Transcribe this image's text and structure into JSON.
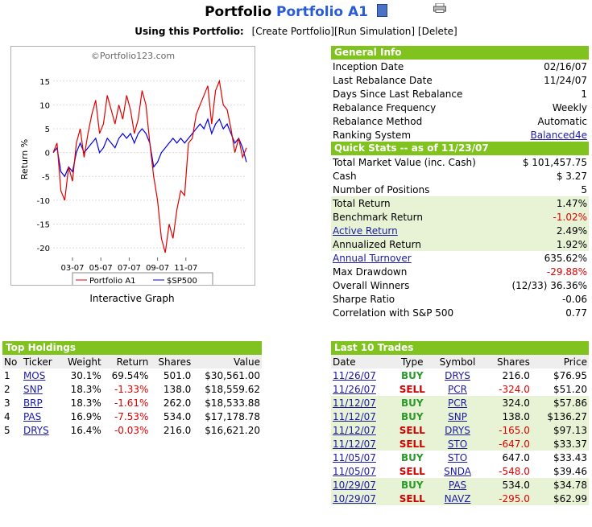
{
  "header": {
    "title_prefix": "Portfolio",
    "portfolio_name": "Portfolio A1",
    "using_label": "Using this Portfolio:",
    "actions": [
      "[Create Portfolio]",
      "[Run Simulation]",
      "[Delete]"
    ]
  },
  "graph": {
    "watermark": "©Portfolio123.com",
    "caption": "Interactive Graph",
    "legend": [
      "Portfolio A1",
      "$SP500"
    ],
    "ylabel": "Return %",
    "y_ticks": [
      "15",
      "10",
      "5",
      "0",
      "-5",
      "-10",
      "-15",
      "-20"
    ],
    "x_ticks": [
      "03-07",
      "05-07",
      "07-07",
      "09-07",
      "11-07"
    ]
  },
  "chart_data": {
    "type": "line",
    "title": "",
    "xlabel": "",
    "ylabel": "Return %",
    "ylim": [
      -22,
      18
    ],
    "x": [
      0,
      0.3,
      0.6,
      0.9,
      1.2,
      1.5,
      1.8,
      2.1,
      2.4,
      2.7,
      3.0,
      3.3,
      3.6,
      3.9,
      4.2,
      4.5,
      4.8,
      5.1,
      5.4,
      5.7,
      6.0,
      6.3,
      6.6,
      6.9,
      7.2,
      7.5,
      7.8,
      8.1,
      8.4,
      8.7,
      9.0,
      9.3,
      9.6,
      9.9,
      10.2,
      10.5,
      10.8,
      11.1,
      11.4,
      11.7,
      12.0,
      12.3,
      12.6,
      12.9,
      13.2,
      13.5,
      13.8,
      14.1,
      14.4,
      14.7,
      15.0
    ],
    "x_tick_positions": [
      1.5,
      3.7,
      5.9,
      8.1,
      10.3
    ],
    "series": [
      {
        "name": "Portfolio A1",
        "color": "#e00000",
        "values": [
          0,
          2,
          -8,
          -10,
          -3,
          -6,
          2,
          5,
          -1,
          4,
          8,
          11,
          4,
          6,
          12,
          9,
          6,
          10,
          7,
          12,
          9,
          4,
          7,
          13,
          10,
          2,
          -5,
          -10,
          -18,
          -21,
          -15,
          -18,
          -12,
          -8,
          -9,
          2,
          3,
          8,
          10,
          12,
          14,
          6,
          13,
          15,
          10,
          9,
          5,
          0,
          3,
          -1,
          1
        ]
      },
      {
        "name": "$SP500",
        "color": "#0000e0",
        "values": [
          0,
          1,
          -4,
          -5,
          -3,
          -4,
          0,
          2,
          0,
          1,
          2,
          3,
          0,
          1,
          3,
          2,
          1,
          3,
          4,
          3,
          4,
          2,
          4,
          5,
          4,
          2,
          -3,
          -2,
          0,
          1,
          2,
          3,
          2,
          3,
          2,
          3,
          4,
          5,
          6,
          5,
          7,
          4,
          6,
          7,
          5,
          6,
          4,
          2,
          3,
          1,
          -2
        ]
      }
    ]
  },
  "general_info": {
    "title": "General Info",
    "rows": [
      {
        "label": "Inception Date",
        "value": "02/16/07"
      },
      {
        "label": "Last Rebalance Date",
        "value": "11/24/07"
      },
      {
        "label": "Days Since Last Rebalance",
        "value": "1"
      },
      {
        "label": "Rebalance Frequency",
        "value": "Weekly"
      },
      {
        "label": "Rebalance Method",
        "value": "Automatic"
      },
      {
        "label": "Ranking System",
        "value": "Balanced4e"
      }
    ]
  },
  "quick_stats": {
    "title": "Quick Stats -- as of 11/23/07",
    "rows": [
      {
        "label": "Total Market Value (inc. Cash)",
        "value": "$ 101,457.75"
      },
      {
        "label": "Cash",
        "value": "$ 3.27"
      },
      {
        "label": "Number of Positions",
        "value": "5"
      },
      {
        "label": "Total Return",
        "value": "1.47%"
      },
      {
        "label": "Benchmark Return",
        "value": "-1.02%"
      },
      {
        "label": "Active Return",
        "value": "2.49%"
      },
      {
        "label": "Annualized Return",
        "value": "1.92%"
      },
      {
        "label": "Annual Turnover",
        "value": "635.62%"
      },
      {
        "label": "Max Drawdown",
        "value": "-29.88%"
      },
      {
        "label": "Overall Winners",
        "value": "(12/33) 36.36%"
      },
      {
        "label": "Sharpe Ratio",
        "value": "-0.06"
      },
      {
        "label": "Correlation with S&P 500",
        "value": "0.77"
      }
    ]
  },
  "top_holdings": {
    "title": "Top Holdings",
    "columns": [
      "No",
      "Ticker",
      "Weight",
      "Return",
      "Shares",
      "Value"
    ],
    "rows": [
      {
        "no": "1",
        "ticker": "MOS",
        "weight": "30.1%",
        "ret": "69.54%",
        "shares": "501.0",
        "value": "$30,561.00"
      },
      {
        "no": "2",
        "ticker": "SNP",
        "weight": "18.3%",
        "ret": "-1.33%",
        "shares": "138.0",
        "value": "$18,559.62"
      },
      {
        "no": "3",
        "ticker": "BRP",
        "weight": "18.3%",
        "ret": "-1.61%",
        "shares": "262.0",
        "value": "$18,533.88"
      },
      {
        "no": "4",
        "ticker": "PAS",
        "weight": "16.9%",
        "ret": "-7.53%",
        "shares": "534.0",
        "value": "$17,178.78"
      },
      {
        "no": "5",
        "ticker": "DRYS",
        "weight": "16.4%",
        "ret": "-0.03%",
        "shares": "216.0",
        "value": "$16,621.20"
      }
    ]
  },
  "last_trades": {
    "title": "Last 10 Trades",
    "columns": [
      "Date",
      "Type",
      "Symbol",
      "Shares",
      "Price"
    ],
    "rows": [
      {
        "date": "11/26/07",
        "type": "BUY",
        "symbol": "DRYS",
        "shares": "216.0",
        "price": "$76.95"
      },
      {
        "date": "11/26/07",
        "type": "SELL",
        "symbol": "PCR",
        "shares": "-324.0",
        "price": "$51.20"
      },
      {
        "date": "11/12/07",
        "type": "BUY",
        "symbol": "PCR",
        "shares": "324.0",
        "price": "$57.86"
      },
      {
        "date": "11/12/07",
        "type": "BUY",
        "symbol": "SNP",
        "shares": "138.0",
        "price": "$136.27"
      },
      {
        "date": "11/12/07",
        "type": "SELL",
        "symbol": "DRYS",
        "shares": "-165.0",
        "price": "$97.13"
      },
      {
        "date": "11/12/07",
        "type": "SELL",
        "symbol": "STO",
        "shares": "-647.0",
        "price": "$33.37"
      },
      {
        "date": "11/05/07",
        "type": "BUY",
        "symbol": "STO",
        "shares": "647.0",
        "price": "$33.43"
      },
      {
        "date": "11/05/07",
        "type": "SELL",
        "symbol": "SNDA",
        "shares": "-548.0",
        "price": "$39.46"
      },
      {
        "date": "10/29/07",
        "type": "BUY",
        "symbol": "PAS",
        "shares": "534.0",
        "price": "$34.78"
      },
      {
        "date": "10/29/07",
        "type": "SELL",
        "symbol": "NAVZ",
        "shares": "-295.0",
        "price": "$62.99"
      }
    ]
  }
}
